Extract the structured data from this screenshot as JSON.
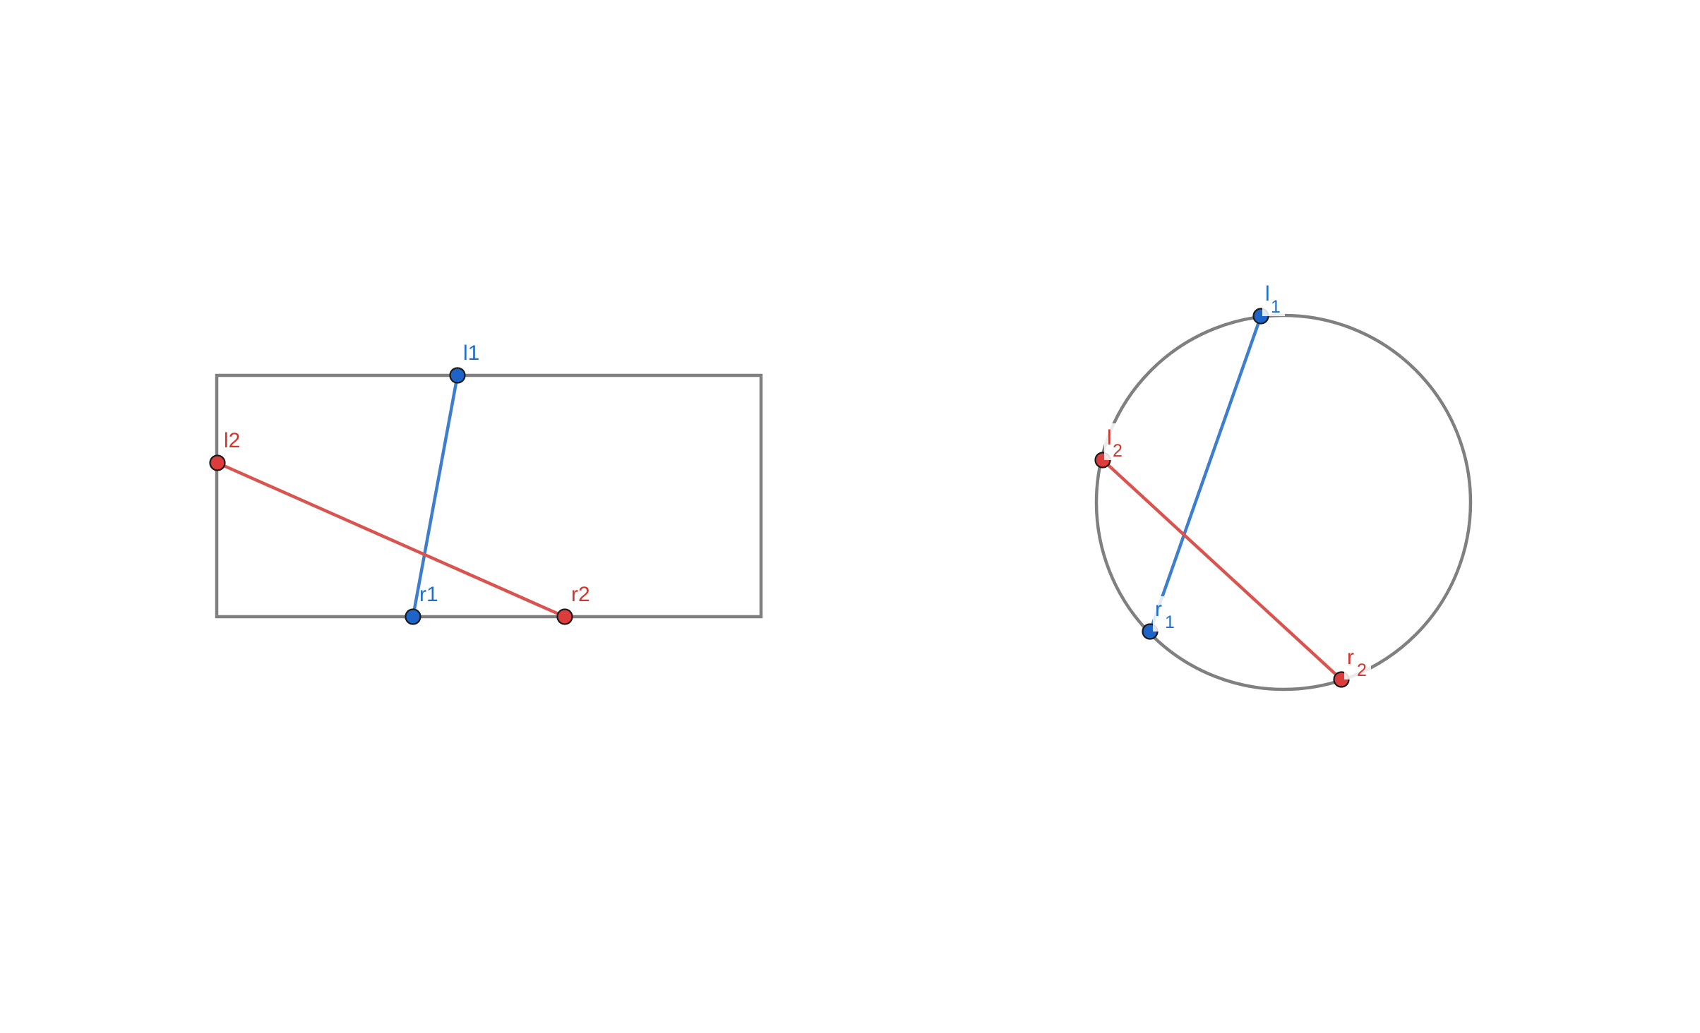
{
  "colors": {
    "background": "#ffffff",
    "frame": "#808080",
    "blue": "#3d7fce",
    "blue_point": "#1e64c8",
    "red": "#d9534f",
    "red_point": "#dc3c3c",
    "label_blue": "#1f6fc6",
    "label_red": "#d4342c"
  },
  "rectangle_diagram": {
    "labels": {
      "l1": "l1",
      "l2": "l2",
      "r1": "r1",
      "r2": "r2"
    }
  },
  "circle_diagram": {
    "labels": {
      "l1_base": "l",
      "l1_sub": "1",
      "l2_base": "l",
      "l2_sub": "2",
      "r1_base": "r",
      "r1_sub": "1",
      "r2_base": "r",
      "r2_sub": "2"
    }
  }
}
